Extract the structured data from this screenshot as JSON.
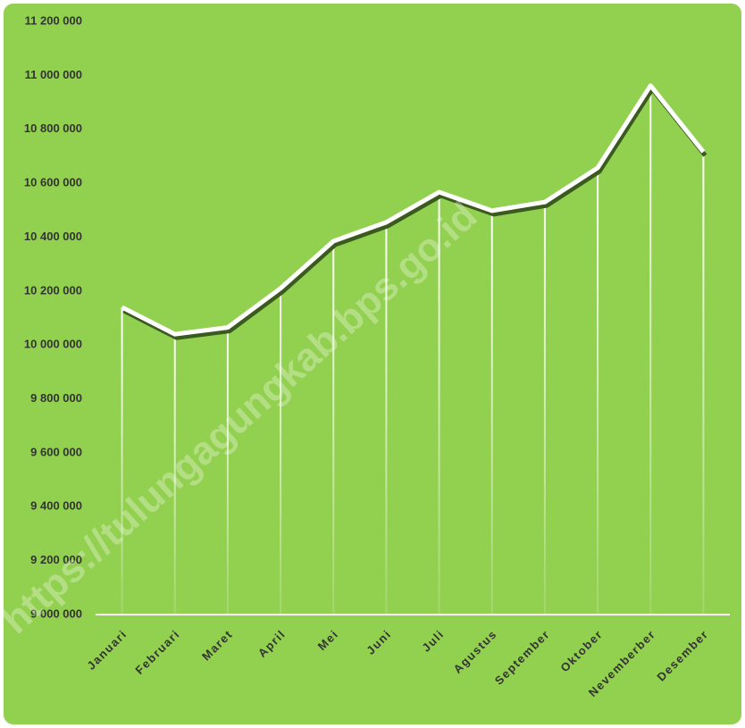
{
  "chart_data": {
    "type": "line",
    "categories": [
      "Januari",
      "Februari",
      "Maret",
      "April",
      "Mei",
      "Juni",
      "Juli",
      "Agustus",
      "September",
      "Oktober",
      "Nevemberber",
      "Desember"
    ],
    "values": [
      10140000,
      10040000,
      10065000,
      10210000,
      10385000,
      10455000,
      10567000,
      10498000,
      10530000,
      10657000,
      10962000,
      10716000
    ],
    "color": "#ffffff",
    "ylim": [
      9000000,
      11200000
    ],
    "yticks": [
      {
        "value": 9000000,
        "label": "9 000 000"
      },
      {
        "value": 9200000,
        "label": "9 200 000"
      },
      {
        "value": 9400000,
        "label": "9 400 000"
      },
      {
        "value": 9600000,
        "label": "9 600 000"
      },
      {
        "value": 9800000,
        "label": "9 800 000"
      },
      {
        "value": 10000000,
        "label": "10 000 000"
      },
      {
        "value": 10200000,
        "label": "10 200 000"
      },
      {
        "value": 10400000,
        "label": "10 400 000"
      },
      {
        "value": 10600000,
        "label": "10 600 000"
      },
      {
        "value": 10800000,
        "label": "10 800 000"
      },
      {
        "value": 11000000,
        "label": "11 000 000"
      },
      {
        "value": 11200000,
        "label": "11 200 000"
      }
    ],
    "grid": false,
    "watermark": "https://tulungagungkab.bps.go.id"
  }
}
